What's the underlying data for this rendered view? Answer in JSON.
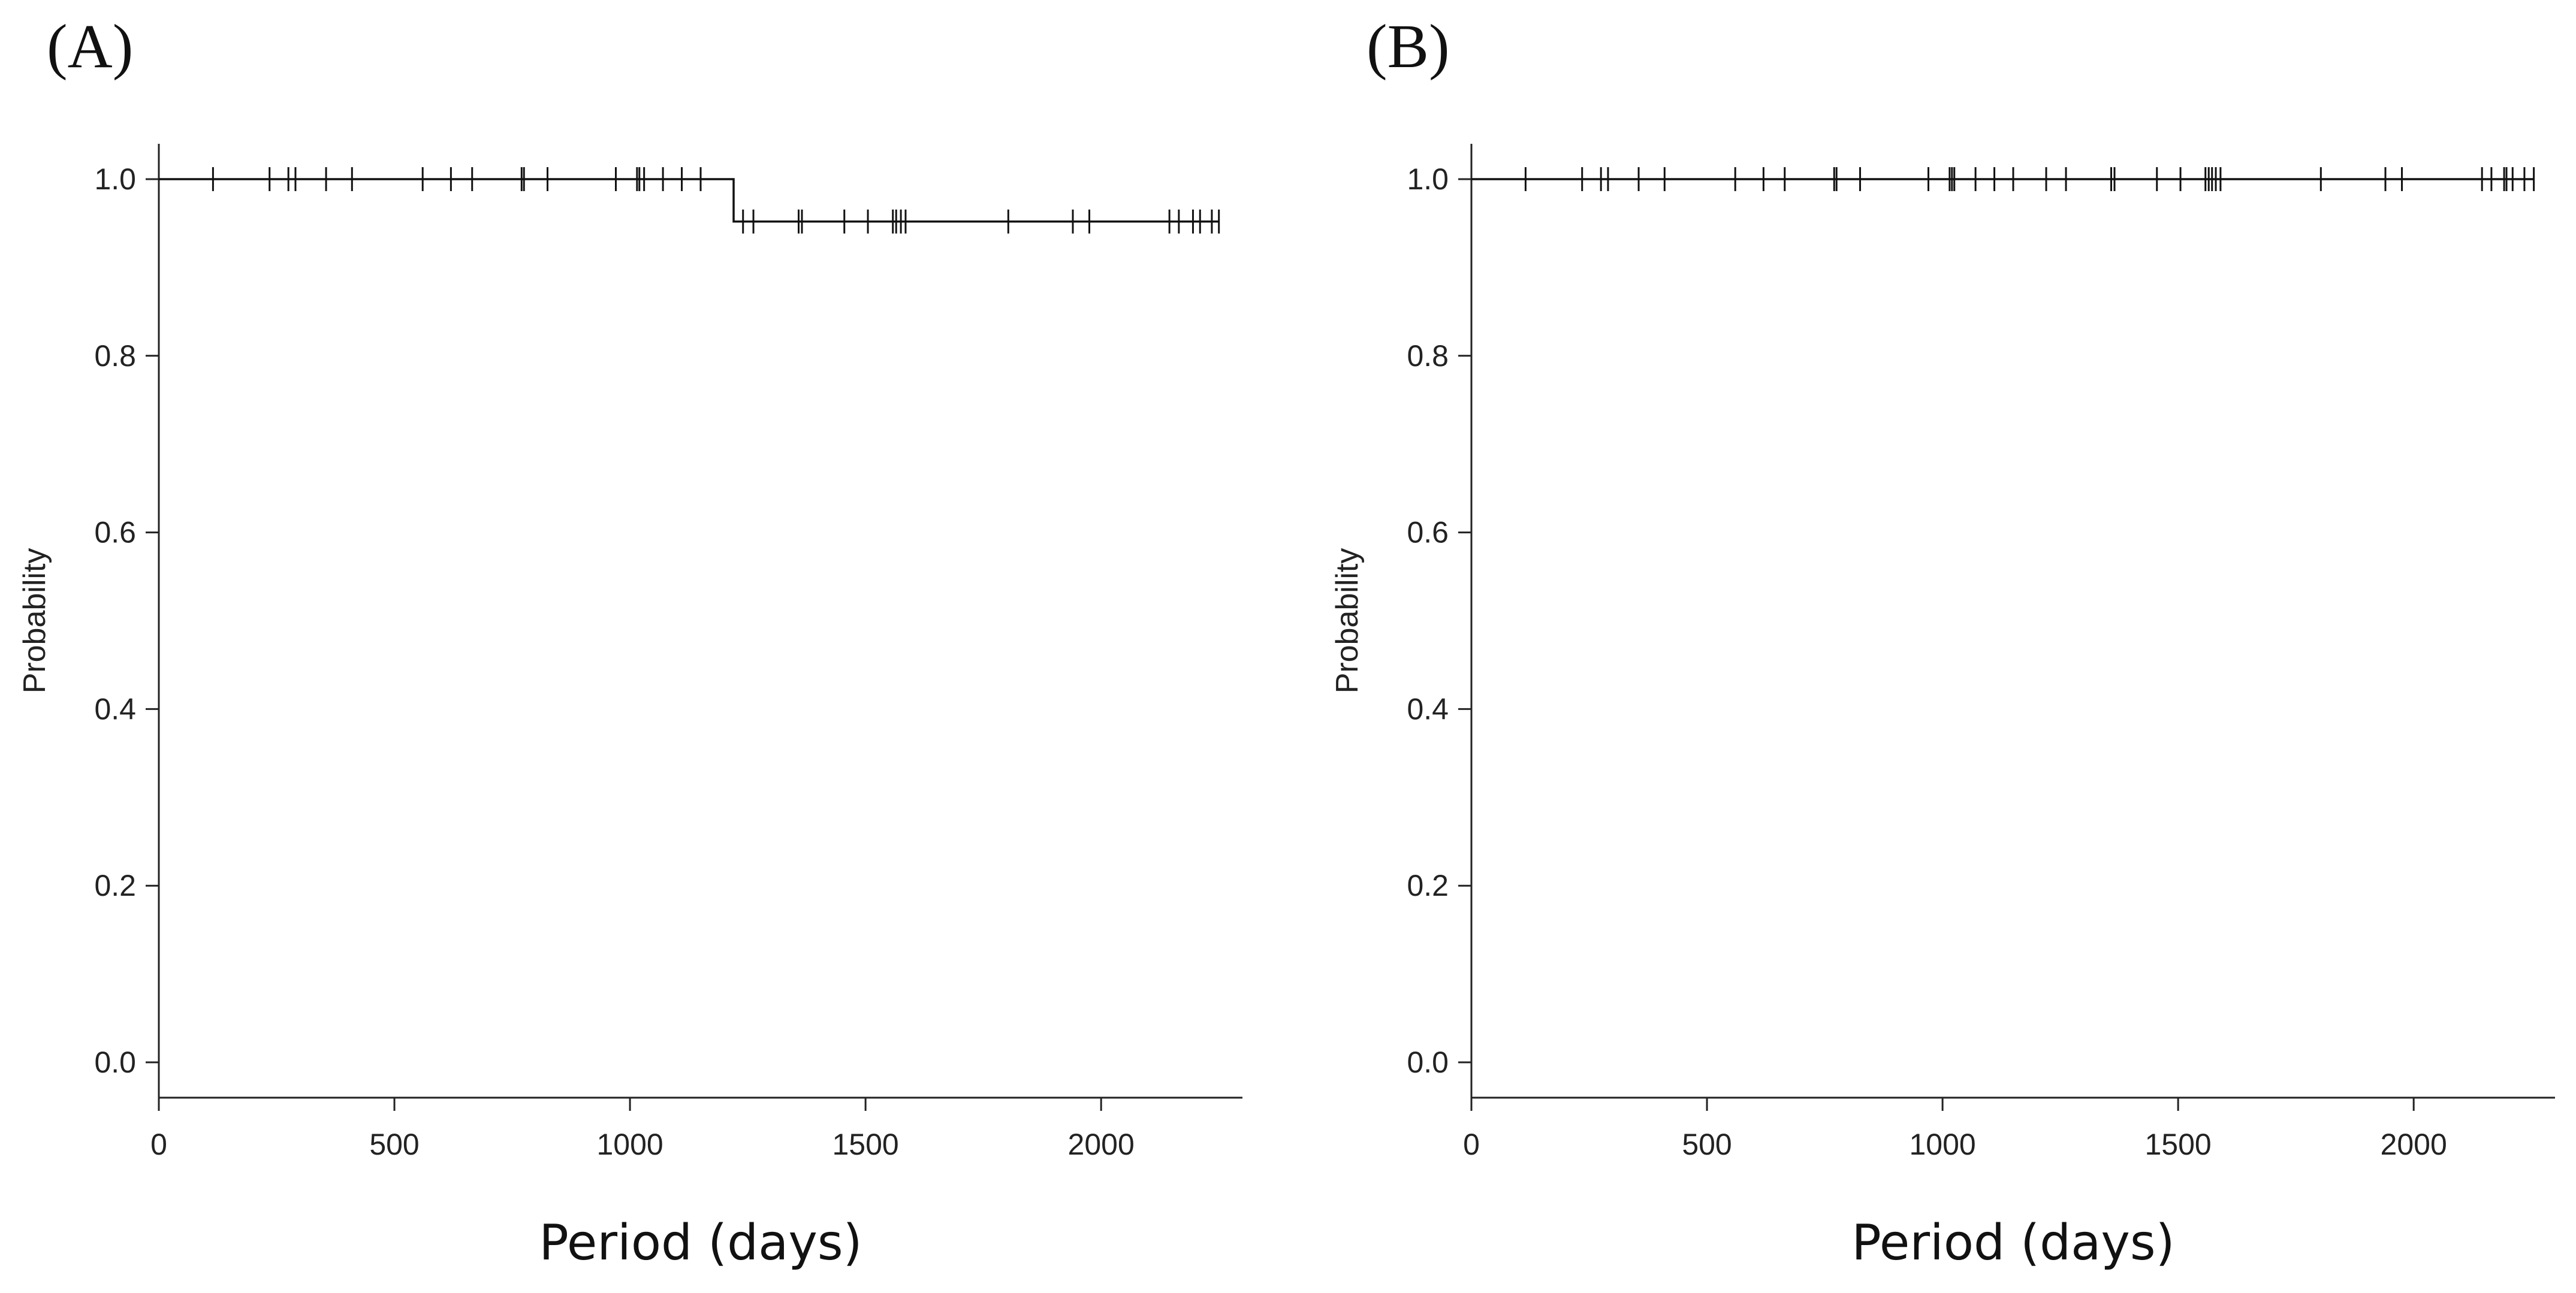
{
  "chart_data": [
    {
      "type": "line",
      "subtype": "kaplan-meier",
      "panel_label": "(A)",
      "xlabel": "Period (days)",
      "ylabel": "Probability",
      "xlim": [
        0,
        2300
      ],
      "ylim": [
        -0.04,
        1.04
      ],
      "xticks": [
        0,
        500,
        1000,
        1500,
        2000
      ],
      "xtick_labels": [
        "0",
        "500",
        "1000",
        "1500",
        "2000"
      ],
      "yticks": [
        0.0,
        0.2,
        0.4,
        0.6,
        0.8,
        1.0
      ],
      "ytick_labels": [
        "0.0",
        "0.2",
        "0.4",
        "0.6",
        "0.8",
        "1.0"
      ],
      "series": [
        {
          "name": "survival",
          "steps": [
            {
              "x": 0,
              "y": 1.0
            },
            {
              "x": 1220,
              "y": 0.952
            }
          ],
          "end_x": 2250,
          "censored": [
            115,
            235,
            275,
            290,
            355,
            410,
            560,
            620,
            665,
            770,
            775,
            825,
            970,
            1015,
            1020,
            1030,
            1070,
            1110,
            1150,
            1240,
            1262,
            1358,
            1365,
            1455,
            1505,
            1558,
            1565,
            1575,
            1585,
            1803,
            1940,
            1975,
            2145,
            2165,
            2195,
            2210,
            2235,
            2250
          ]
        }
      ]
    },
    {
      "type": "line",
      "subtype": "kaplan-meier",
      "panel_label": "(B)",
      "xlabel": "Period (days)",
      "ylabel": "Probability",
      "xlim": [
        0,
        2300
      ],
      "ylim": [
        -0.04,
        1.04
      ],
      "xticks": [
        0,
        500,
        1000,
        1500,
        2000
      ],
      "xtick_labels": [
        "0",
        "500",
        "1000",
        "1500",
        "2000"
      ],
      "yticks": [
        0.0,
        0.2,
        0.4,
        0.6,
        0.8,
        1.0
      ],
      "ytick_labels": [
        "0.0",
        "0.2",
        "0.4",
        "0.6",
        "0.8",
        "1.0"
      ],
      "series": [
        {
          "name": "survival",
          "steps": [
            {
              "x": 0,
              "y": 1.0
            }
          ],
          "end_x": 2255,
          "censored": [
            115,
            235,
            275,
            290,
            355,
            410,
            560,
            620,
            665,
            770,
            775,
            825,
            970,
            1015,
            1020,
            1025,
            1070,
            1110,
            1150,
            1220,
            1262,
            1358,
            1365,
            1455,
            1505,
            1558,
            1565,
            1572,
            1580,
            1590,
            1803,
            1940,
            1975,
            2145,
            2165,
            2192,
            2197,
            2210,
            2235,
            2255
          ]
        }
      ]
    }
  ]
}
